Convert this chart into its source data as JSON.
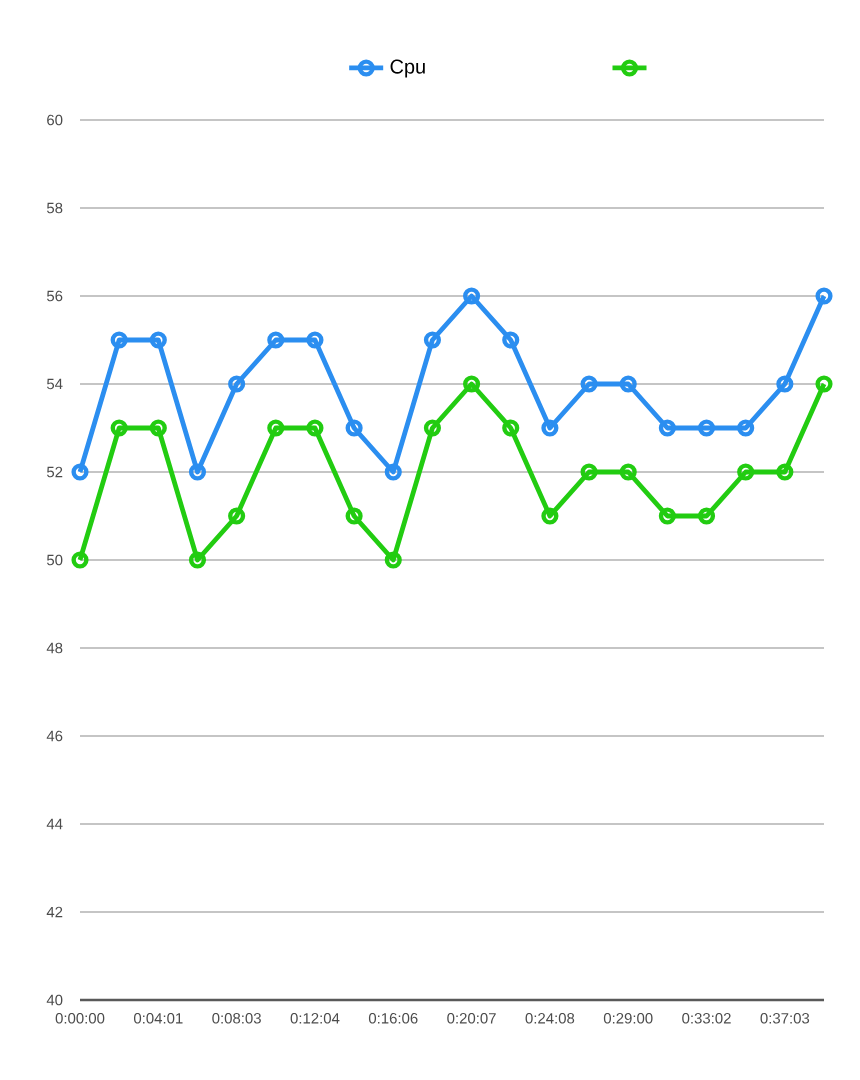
{
  "chart_data": {
    "type": "line",
    "categories": [
      "0:00:00",
      null,
      "0:04:01",
      null,
      "0:08:03",
      null,
      "0:12:04",
      null,
      "0:16:06",
      null,
      "0:20:07",
      null,
      "0:24:08",
      null,
      "0:29:00",
      null,
      "0:33:02",
      null,
      "0:37:03",
      null
    ],
    "series": [
      {
        "name": "Cpu",
        "color": "#2b8ef0",
        "values": [
          52,
          55,
          55,
          52,
          54,
          55,
          55,
          53,
          52,
          55,
          56,
          55,
          53,
          54,
          54,
          53,
          53,
          53,
          54,
          56
        ]
      },
      {
        "color": "#22cc11",
        "values": [
          50,
          53,
          53,
          50,
          51,
          53,
          53,
          51,
          50,
          53,
          54,
          53,
          51,
          52,
          52,
          51,
          51,
          52,
          52,
          54
        ]
      }
    ],
    "ylim": [
      40,
      60
    ],
    "yticks": [
      40,
      42,
      44,
      46,
      48,
      50,
      52,
      54,
      56,
      58,
      60
    ],
    "grid": "y",
    "legend": "top",
    "marker": "circle",
    "line_style": "solid"
  }
}
